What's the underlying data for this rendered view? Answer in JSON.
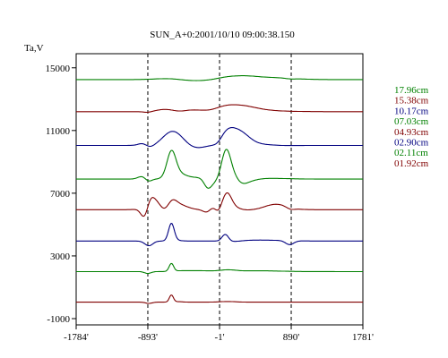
{
  "chart_data": {
    "type": "line",
    "title": "SUN_A+0:2001/10/10 09:00:38.150",
    "ylabel": "Ta,V",
    "xlabel": "",
    "xlim": [
      -1784,
      1781
    ],
    "ylim": [
      -1400,
      15900
    ],
    "x_ticks": [
      -1784,
      -893,
      -1,
      890,
      1781
    ],
    "x_tick_labels": [
      "-1784'",
      "-893'",
      "-1'",
      "890'",
      "1781'"
    ],
    "y_ticks": [
      15000,
      11000,
      7000,
      3000,
      -1000
    ],
    "y_tick_labels": [
      "15000",
      "11000",
      "7000",
      "3000",
      "-1000"
    ],
    "vertical_markers": [
      -893,
      -1,
      890
    ],
    "grid": false,
    "legend_position": "right",
    "series": [
      {
        "name": "17.96cm",
        "color": "#008000",
        "baseline": 14250,
        "features": [
          [
            -1700,
            0,
            400
          ],
          [
            -600,
            80,
            180
          ],
          [
            -350,
            -90,
            180
          ],
          [
            80,
            100,
            120
          ],
          [
            300,
            180,
            160
          ],
          [
            650,
            120,
            250
          ],
          [
            880,
            -40,
            60
          ]
        ]
      },
      {
        "name": "15.38cm",
        "color": "#800000",
        "baseline": 12200,
        "features": [
          [
            -893,
            -60,
            50
          ],
          [
            -640,
            170,
            130
          ],
          [
            -520,
            -100,
            90
          ],
          [
            -330,
            110,
            130
          ],
          [
            60,
            250,
            120
          ],
          [
            260,
            270,
            150
          ],
          [
            420,
            100,
            180
          ],
          [
            600,
            40,
            300
          ]
        ]
      },
      {
        "name": "10.17cm",
        "color": "#000080",
        "baseline": 10050,
        "features": [
          [
            -893,
            -300,
            60
          ],
          [
            -930,
            300,
            60
          ],
          [
            -600,
            780,
            110
          ],
          [
            -450,
            250,
            120
          ],
          [
            -360,
            -180,
            90
          ],
          [
            -250,
            -120,
            100
          ],
          [
            -20,
            -250,
            60
          ],
          [
            90,
            820,
            100
          ],
          [
            260,
            700,
            110
          ],
          [
            450,
            100,
            200
          ],
          [
            700,
            -30,
            200
          ]
        ]
      },
      {
        "name": "07.03cm",
        "color": "#008000",
        "baseline": 7900,
        "features": [
          [
            -893,
            -280,
            45
          ],
          [
            -940,
            250,
            60
          ],
          [
            -600,
            1600,
            55
          ],
          [
            -520,
            300,
            90
          ],
          [
            -300,
            100,
            200
          ],
          [
            -150,
            -520,
            45
          ],
          [
            -80,
            -250,
            60
          ],
          [
            80,
            1650,
            55
          ],
          [
            160,
            400,
            80
          ],
          [
            260,
            -300,
            70
          ],
          [
            350,
            -150,
            100
          ],
          [
            600,
            50,
            250
          ]
        ]
      },
      {
        "name": "04.93cm",
        "color": "#800000",
        "baseline": 5950,
        "features": [
          [
            -930,
            -800,
            45
          ],
          [
            -870,
            400,
            50
          ],
          [
            -800,
            600,
            100
          ],
          [
            -680,
            -450,
            60
          ],
          [
            -600,
            500,
            60
          ],
          [
            -500,
            300,
            100
          ],
          [
            -150,
            -300,
            50
          ],
          [
            -80,
            300,
            70
          ],
          [
            -20,
            -350,
            40
          ],
          [
            90,
            950,
            55
          ],
          [
            160,
            200,
            80
          ],
          [
            300,
            -40,
            200
          ],
          [
            700,
            350,
            140
          ],
          [
            880,
            -120,
            50
          ]
        ]
      },
      {
        "name": "02.90cm",
        "color": "#000080",
        "baseline": 3950,
        "features": [
          [
            -880,
            -300,
            50
          ],
          [
            -600,
            1100,
            35
          ],
          [
            -550,
            50,
            60
          ],
          [
            70,
            450,
            40
          ],
          [
            150,
            -60,
            100
          ],
          [
            500,
            60,
            250
          ],
          [
            870,
            -250,
            50
          ]
        ]
      },
      {
        "name": "02.11cm",
        "color": "#008000",
        "baseline": 2000,
        "features": [
          [
            -893,
            -120,
            40
          ],
          [
            -600,
            500,
            28
          ],
          [
            -500,
            30,
            80
          ],
          [
            -280,
            60,
            160
          ],
          [
            100,
            100,
            100
          ],
          [
            500,
            50,
            250
          ]
        ]
      },
      {
        "name": "01.92cm",
        "color": "#800000",
        "baseline": 50,
        "features": [
          [
            -880,
            -80,
            40
          ],
          [
            -600,
            450,
            25
          ],
          [
            -520,
            30,
            60
          ],
          [
            100,
            40,
            100
          ]
        ]
      }
    ]
  }
}
